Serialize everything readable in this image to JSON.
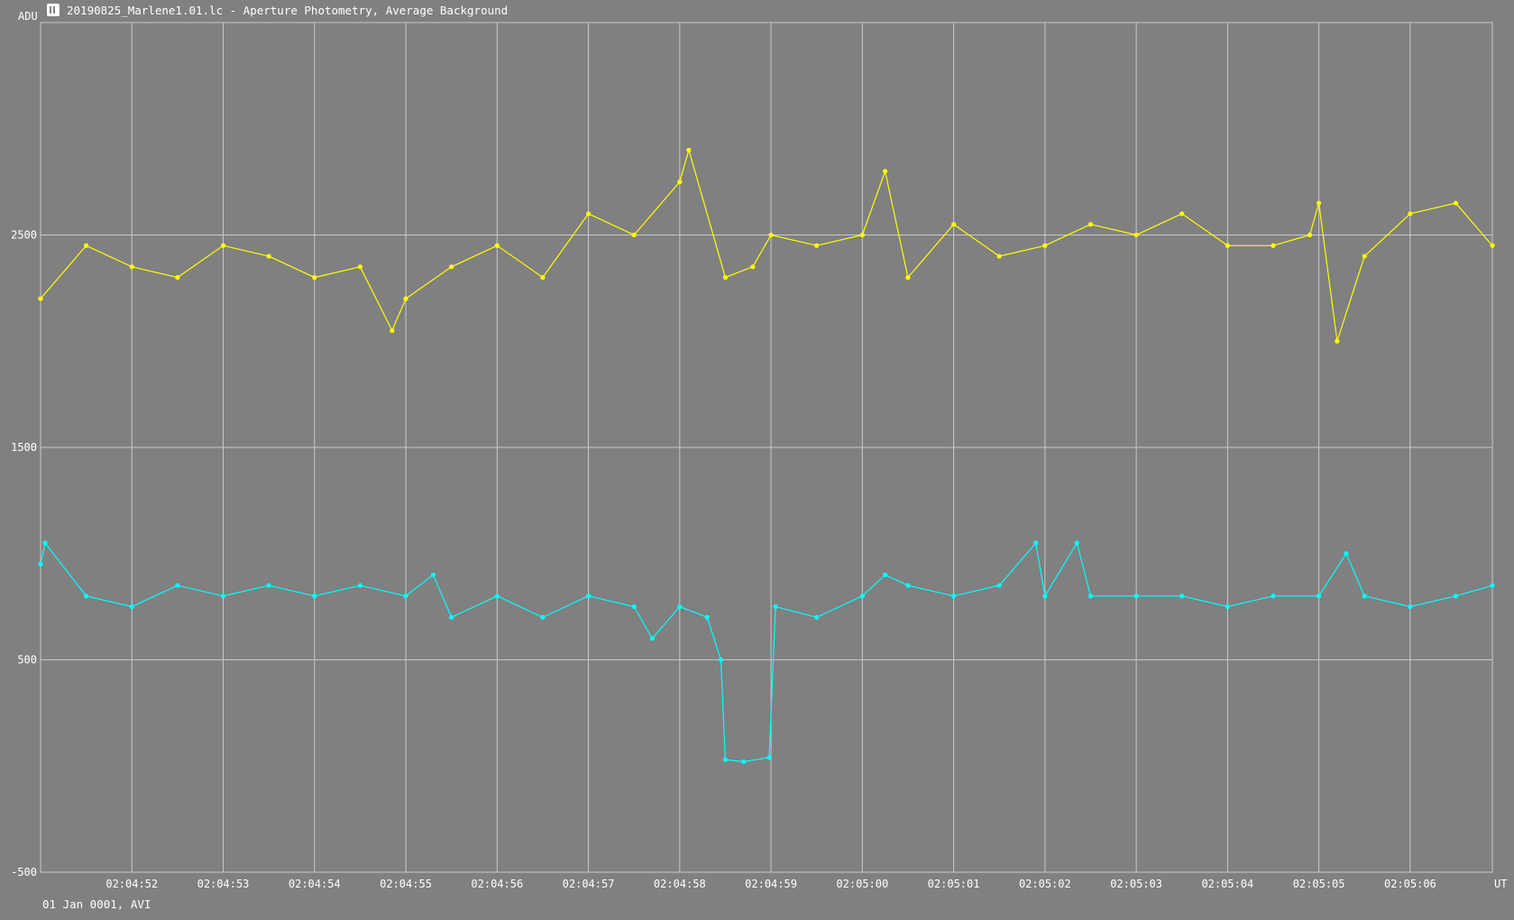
{
  "window": {
    "title": "20190825_Marlene1.01.lc - Aperture Photometry, Average Background",
    "icon": "app-icon"
  },
  "footer": {
    "date_note": "01 Jan 0001, AVI"
  },
  "chart_data": {
    "type": "line",
    "ylabel": "ADU",
    "xlabel": "UT",
    "ylim": [
      -500,
      3500
    ],
    "y_ticks": [
      -500,
      500,
      1500,
      2500
    ],
    "x_range": [
      0,
      15.9
    ],
    "x_ticks": [
      {
        "x": 1,
        "label": "02:04:52"
      },
      {
        "x": 2,
        "label": "02:04:53"
      },
      {
        "x": 3,
        "label": "02:04:54"
      },
      {
        "x": 4,
        "label": "02:04:55"
      },
      {
        "x": 5,
        "label": "02:04:56"
      },
      {
        "x": 6,
        "label": "02:04:57"
      },
      {
        "x": 7,
        "label": "02:04:58"
      },
      {
        "x": 8,
        "label": "02:04:59"
      },
      {
        "x": 9,
        "label": "02:05:00"
      },
      {
        "x": 10,
        "label": "02:05:01"
      },
      {
        "x": 11,
        "label": "02:05:02"
      },
      {
        "x": 12,
        "label": "02:05:03"
      },
      {
        "x": 13,
        "label": "02:05:04"
      },
      {
        "x": 14,
        "label": "02:05:05"
      },
      {
        "x": 15,
        "label": "02:05:06"
      }
    ],
    "grid": true,
    "colors": {
      "background": "#808080",
      "grid": "#c8c8c8",
      "axis_text": "#ffffff",
      "series1": "#ffff00",
      "series2": "#00ffff"
    },
    "series": [
      {
        "color": "#ffff00",
        "x": [
          0,
          0.5,
          1,
          1.5,
          2,
          2.5,
          3,
          3.5,
          3.85,
          4,
          4.5,
          5,
          5.5,
          6,
          6.5,
          7,
          7.1,
          7.5,
          7.8,
          8,
          8.5,
          9,
          9.25,
          9.5,
          10,
          10.5,
          11,
          11.5,
          12,
          12.5,
          13,
          13.5,
          13.9,
          14,
          14.2,
          14.5,
          15,
          15.5,
          15.9
        ],
        "y": [
          2200,
          2450,
          2350,
          2300,
          2450,
          2400,
          2300,
          2350,
          2050,
          2200,
          2350,
          2450,
          2300,
          2600,
          2500,
          2750,
          2900,
          2300,
          2350,
          2500,
          2450,
          2500,
          2800,
          2300,
          2550,
          2400,
          2450,
          2550,
          2500,
          2600,
          2450,
          2450,
          2500,
          2650,
          2000,
          2400,
          2600,
          2650,
          2450
        ]
      },
      {
        "color": "#00ffff",
        "x": [
          0,
          0.05,
          0.5,
          1,
          1.5,
          2,
          2.5,
          3,
          3.5,
          4,
          4.3,
          4.5,
          5,
          5.5,
          6,
          6.5,
          6.7,
          7,
          7.3,
          7.45,
          7.5,
          7.7,
          7.98,
          8.05,
          8.5,
          9,
          9.25,
          9.5,
          10,
          10.5,
          10.9,
          11,
          11.35,
          11.5,
          12,
          12.5,
          13,
          13.5,
          14,
          14.3,
          14.5,
          15,
          15.5,
          15.9
        ],
        "y": [
          950,
          1050,
          800,
          750,
          850,
          800,
          850,
          800,
          850,
          800,
          900,
          700,
          800,
          700,
          800,
          750,
          600,
          750,
          700,
          500,
          30,
          20,
          40,
          750,
          700,
          800,
          900,
          850,
          800,
          850,
          1050,
          800,
          1050,
          800,
          800,
          800,
          750,
          800,
          800,
          1000,
          800,
          750,
          800,
          850
        ]
      }
    ]
  }
}
